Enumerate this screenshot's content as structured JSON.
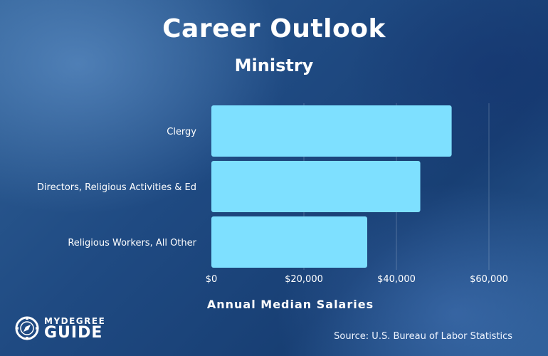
{
  "chart_data": {
    "type": "bar",
    "orientation": "horizontal",
    "title": "Career Outlook",
    "subtitle": "Ministry",
    "categories": [
      "Clergy",
      "Directors, Religious Activities & Ed",
      "Religious Workers, All Other"
    ],
    "values": [
      51940,
      45160,
      33690
    ],
    "xlabel": "Annual Median Salaries",
    "xlim": [
      0,
      60000
    ],
    "xticks": [
      0,
      20000,
      40000,
      60000
    ],
    "xtick_labels": [
      "$0",
      "$20,000",
      "$40,000",
      "$60,000"
    ],
    "grid": "vertical",
    "bar_color": "#7ee0ff"
  },
  "source": "Source: U.S. Bureau of Labor Statistics",
  "logo": {
    "line1": "MYDEGREE",
    "line2": "GUIDE",
    "icon": "compass-icon"
  }
}
